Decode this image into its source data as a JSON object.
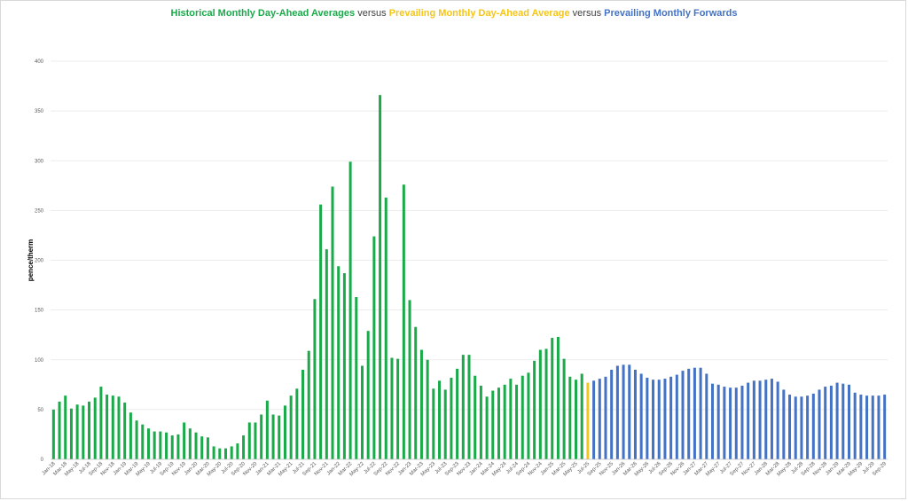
{
  "title": {
    "part1": "Historical Monthly Day-Ahead Averages",
    "sep1": " versus ",
    "part2": "Prevailing Monthly Day-Ahead Average",
    "sep2": " versus ",
    "part3": "Prevailing Monthly Forwards"
  },
  "colors": {
    "historical": "#1aaa4a",
    "prevailing": "#f5c518",
    "forwards": "#4472c4",
    "grid": "#e6e6e6",
    "sep_text": "#404040"
  },
  "chart_data": {
    "type": "bar",
    "title": "Historical Monthly Day-Ahead Averages versus Prevailing Monthly Day-Ahead Average versus Prevailing Monthly Forwards",
    "xlabel": "",
    "ylabel": "pence/therm",
    "ylim": [
      0,
      400
    ],
    "yticks": [
      0,
      50,
      100,
      150,
      200,
      250,
      300,
      350,
      400
    ],
    "grid": true,
    "legend": "none",
    "start": "2018-01",
    "x_tick_labels": [
      "Jan-18",
      "Mar-18",
      "May-18",
      "Jul-18",
      "Sep-18",
      "Nov-18",
      "Jan-19",
      "Mar-19",
      "May-19",
      "Jul-19",
      "Sep-19",
      "Nov-19",
      "Jan-20",
      "Mar-20",
      "May-20",
      "Jul-20",
      "Sep-20",
      "Nov-20",
      "Jan-21",
      "Mar-21",
      "May-21",
      "Jul-21",
      "Sep-21",
      "Nov-21",
      "Jan-22",
      "Mar-22",
      "May-22",
      "Jul-22",
      "Sep-22",
      "Nov-22",
      "Jan-23",
      "Mar-23",
      "May-23",
      "Jul-23",
      "Sep-23",
      "Nov-23",
      "Jan-24",
      "Mar-24",
      "May-24",
      "Jul-24",
      "Sep-24",
      "Nov-24",
      "Jan-25",
      "Mar-25",
      "May-25",
      "Jul-25",
      "Sep-25",
      "Nov-25",
      "Jan-26",
      "Mar-26",
      "May-26",
      "Jul-26",
      "Sep-26",
      "Nov-26",
      "Jan-27",
      "Mar-27",
      "May-27",
      "Jul-27",
      "Sep-27",
      "Nov-27",
      "Jan-28",
      "Mar-28",
      "May-28",
      "Jul-28",
      "Sep-28",
      "Nov-28",
      "Jan-29",
      "Mar-29",
      "May-29",
      "Jul-29",
      "Sep-29"
    ],
    "series": [
      {
        "name": "Historical Monthly Day-Ahead Averages",
        "from": "Jan-18",
        "values": [
          50,
          58,
          64,
          51,
          55,
          54,
          58,
          62,
          73,
          65,
          64,
          63,
          57,
          47,
          39,
          35,
          31,
          28,
          28,
          27,
          24,
          25,
          37,
          31,
          27,
          23,
          22,
          13,
          11,
          11,
          13,
          16,
          24,
          37,
          37,
          45,
          59,
          45,
          44,
          54,
          64,
          71,
          90,
          109,
          161,
          256,
          211,
          274,
          194,
          187,
          299,
          163,
          94,
          129,
          224,
          366,
          263,
          102,
          101,
          276,
          160,
          133,
          110,
          100,
          71,
          79,
          70,
          82,
          91,
          105,
          105,
          84,
          74,
          63,
          69,
          72,
          75,
          81,
          75,
          84,
          87,
          99,
          110,
          111,
          122,
          123,
          101,
          83,
          80,
          86
        ]
      },
      {
        "name": "Prevailing Monthly Day-Ahead Average",
        "from": "Jul-25",
        "values": [
          77
        ]
      },
      {
        "name": "Prevailing Monthly Forwards",
        "from": "Aug-25",
        "values": [
          79,
          81,
          83,
          90,
          94,
          95,
          95,
          90,
          86,
          82,
          80,
          80,
          81,
          83,
          85,
          89,
          91,
          92,
          92,
          86,
          76,
          75,
          73,
          72,
          72,
          74,
          77,
          79,
          79,
          80,
          81,
          78,
          70,
          65,
          63,
          63,
          64,
          66,
          70,
          73,
          74,
          77,
          76,
          75,
          67,
          65,
          64,
          64,
          64,
          65
        ]
      }
    ]
  }
}
